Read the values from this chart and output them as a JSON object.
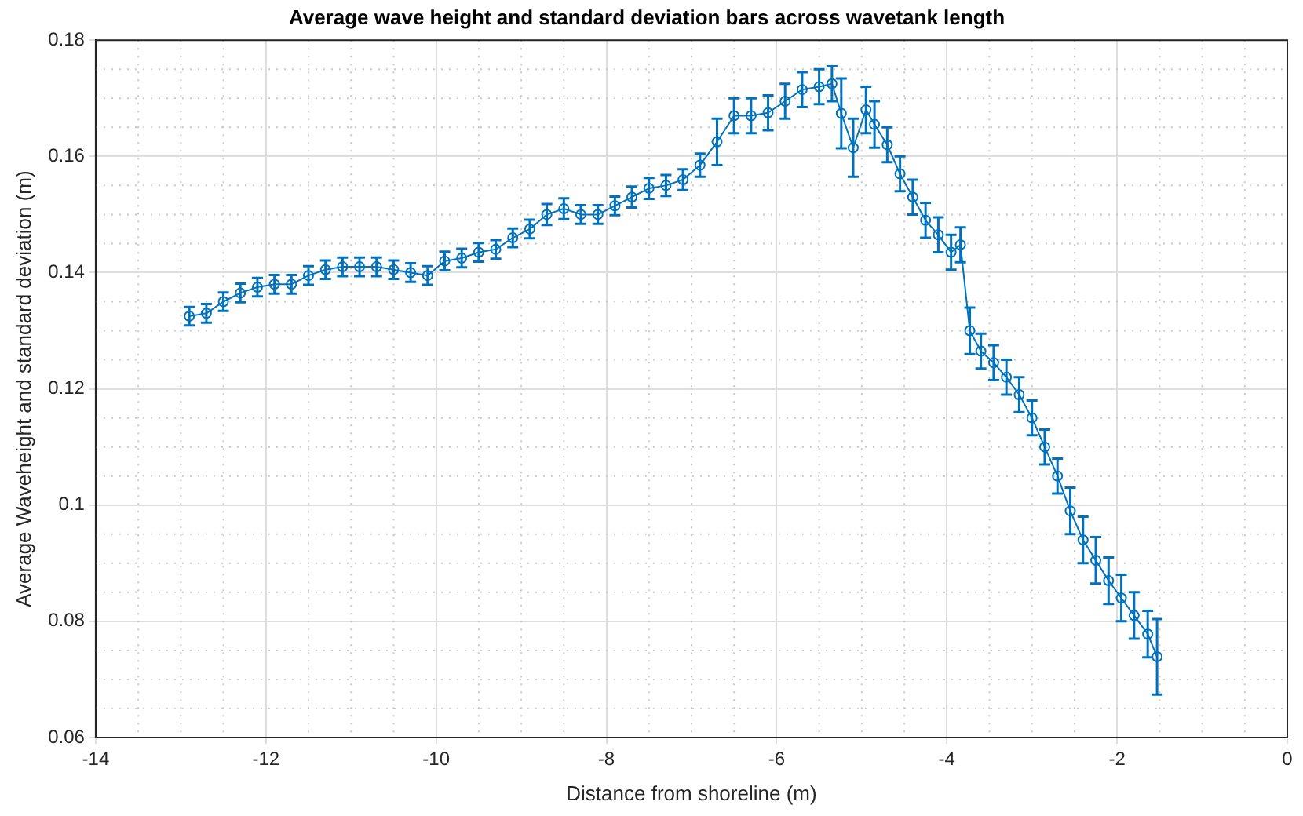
{
  "chart_data": {
    "type": "line",
    "title": "Average wave height and standard deviation bars across wavetank length",
    "xlabel": "Distance from shoreline (m)",
    "ylabel": "Average Waveheight and standard deviation (m)",
    "x": [
      -12.9,
      -12.7,
      -12.5,
      -12.3,
      -12.1,
      -11.9,
      -11.7,
      -11.5,
      -11.3,
      -11.1,
      -10.9,
      -10.7,
      -10.5,
      -10.3,
      -10.1,
      -9.9,
      -9.7,
      -9.5,
      -9.3,
      -9.1,
      -8.9,
      -8.7,
      -8.5,
      -8.3,
      -8.1,
      -7.9,
      -7.7,
      -7.5,
      -7.3,
      -7.1,
      -6.9,
      -6.7,
      -6.5,
      -6.3,
      -6.1,
      -5.9,
      -5.7,
      -5.5,
      -5.35,
      -5.24,
      -5.1,
      -4.95,
      -4.85,
      -4.7,
      -4.55,
      -4.4,
      -4.25,
      -4.1,
      -3.95,
      -3.84,
      -3.73,
      -3.6,
      -3.45,
      -3.3,
      -3.15,
      -3.0,
      -2.85,
      -2.7,
      -2.55,
      -2.4,
      -2.25,
      -2.1,
      -1.95,
      -1.8,
      -1.64,
      -1.53
    ],
    "series": [
      {
        "color": "#0072bd",
        "values": [
          0.1325,
          0.133,
          0.135,
          0.1365,
          0.1375,
          0.138,
          0.138,
          0.1395,
          0.1405,
          0.141,
          0.141,
          0.141,
          0.1405,
          0.14,
          0.1395,
          0.142,
          0.1425,
          0.1435,
          0.144,
          0.146,
          0.1475,
          0.15,
          0.151,
          0.15,
          0.15,
          0.1515,
          0.153,
          0.1545,
          0.155,
          0.156,
          0.1585,
          0.1625,
          0.167,
          0.167,
          0.1675,
          0.1695,
          0.1715,
          0.172,
          0.1725,
          0.1674,
          0.1615,
          0.168,
          0.1655,
          0.162,
          0.157,
          0.153,
          0.149,
          0.1465,
          0.1435,
          0.1448,
          0.13,
          0.1265,
          0.1245,
          0.122,
          0.119,
          0.115,
          0.11,
          0.105,
          0.099,
          0.094,
          0.0905,
          0.087,
          0.084,
          0.081,
          0.0778,
          0.0739
        ],
        "errors": [
          0.0016,
          0.0016,
          0.0016,
          0.0016,
          0.0016,
          0.0016,
          0.0016,
          0.0016,
          0.0016,
          0.0016,
          0.0016,
          0.0016,
          0.0016,
          0.0016,
          0.0016,
          0.0016,
          0.0016,
          0.0016,
          0.0016,
          0.0016,
          0.0016,
          0.0018,
          0.0018,
          0.0016,
          0.0016,
          0.0016,
          0.0018,
          0.0018,
          0.0018,
          0.0018,
          0.002,
          0.004,
          0.003,
          0.003,
          0.003,
          0.003,
          0.003,
          0.003,
          0.003,
          0.006,
          0.005,
          0.004,
          0.004,
          0.003,
          0.003,
          0.003,
          0.003,
          0.003,
          0.003,
          0.003,
          0.004,
          0.003,
          0.003,
          0.003,
          0.003,
          0.003,
          0.003,
          0.003,
          0.004,
          0.004,
          0.004,
          0.004,
          0.004,
          0.004,
          0.004,
          0.0065
        ]
      }
    ],
    "xlim": [
      -14,
      0
    ],
    "xticks": [
      -14,
      -12,
      -10,
      -8,
      -6,
      -4,
      -2,
      0
    ],
    "ylim": [
      0.06,
      0.18
    ],
    "yticks": [
      0.06,
      0.08,
      0.1,
      0.12,
      0.14,
      0.16,
      0.18
    ],
    "grid": true,
    "marker": "circle",
    "line_style": "solid",
    "legend": false
  }
}
